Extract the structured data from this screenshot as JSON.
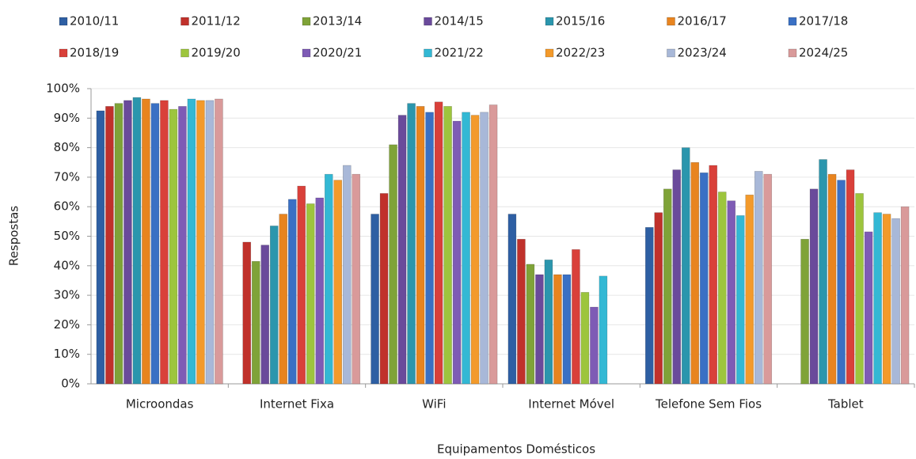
{
  "chart_data": {
    "type": "bar",
    "x_label": "Equipamentos Domésticos",
    "y_label": "Respostas",
    "categories": [
      "Microondas",
      "Internet Fixa",
      "WiFi",
      "Internet Móvel",
      "Telefone Sem Fios",
      "Tablet"
    ],
    "ylim": [
      0,
      100
    ],
    "yticks": [
      {
        "value": 0,
        "label": "0%"
      },
      {
        "value": 10,
        "label": "10%"
      },
      {
        "value": 20,
        "label": "20%"
      },
      {
        "value": 30,
        "label": "30%"
      },
      {
        "value": 40,
        "label": "40%"
      },
      {
        "value": 50,
        "label": "50%"
      },
      {
        "value": 60,
        "label": "60%"
      },
      {
        "value": 70,
        "label": "70%"
      },
      {
        "value": 80,
        "label": "80%"
      },
      {
        "value": 90,
        "label": "90%"
      },
      {
        "value": 100,
        "label": "100%"
      }
    ],
    "grid": true,
    "legend": "top",
    "series": [
      {
        "name": "2010/11",
        "color": "#2e5fa3",
        "values": [
          92.5,
          null,
          57.5,
          57.5,
          53,
          null
        ]
      },
      {
        "name": "2011/12",
        "color": "#c0312b",
        "values": [
          94,
          48,
          64.5,
          49,
          58,
          null
        ]
      },
      {
        "name": "2013/14",
        "color": "#7fa338",
        "values": [
          95,
          41.5,
          81,
          40.5,
          66,
          49
        ]
      },
      {
        "name": "2014/15",
        "color": "#6a4a9b",
        "values": [
          96,
          47,
          91,
          37,
          72.5,
          66
        ]
      },
      {
        "name": "2015/16",
        "color": "#2b96ad",
        "values": [
          97,
          53.5,
          95,
          42,
          80,
          76
        ]
      },
      {
        "name": "2016/17",
        "color": "#e8841f",
        "values": [
          96.5,
          57.5,
          94,
          37,
          75,
          71
        ]
      },
      {
        "name": "2017/18",
        "color": "#3a70c4",
        "values": [
          95,
          62.5,
          92,
          37,
          71.5,
          69
        ]
      },
      {
        "name": "2018/19",
        "color": "#d9403a",
        "values": [
          96,
          67,
          95.5,
          45.5,
          74,
          72.5
        ]
      },
      {
        "name": "2019/20",
        "color": "#9dc53d",
        "values": [
          93,
          61,
          94,
          31,
          65,
          64.5
        ]
      },
      {
        "name": "2020/21",
        "color": "#7e5bb5",
        "values": [
          94,
          63,
          89,
          26,
          62,
          51.5
        ]
      },
      {
        "name": "2021/22",
        "color": "#33b8d4",
        "values": [
          96.5,
          71,
          92,
          36.5,
          57,
          58
        ]
      },
      {
        "name": "2022/23",
        "color": "#f39a2b",
        "values": [
          96,
          69,
          91,
          null,
          64,
          57.5
        ]
      },
      {
        "name": "2023/24",
        "color": "#a8b8d8",
        "values": [
          96,
          74,
          92,
          null,
          72,
          56
        ]
      },
      {
        "name": "2024/25",
        "color": "#d99a9a",
        "values": [
          96.5,
          71,
          94.5,
          null,
          71,
          60
        ]
      }
    ]
  }
}
